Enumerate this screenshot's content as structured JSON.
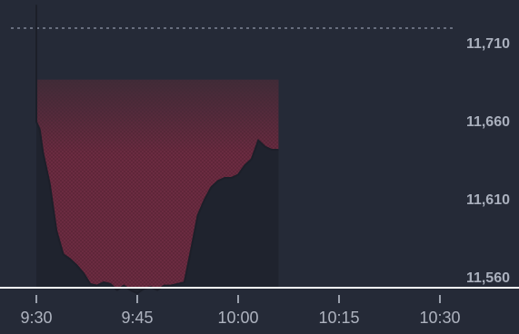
{
  "chart_data": {
    "type": "area",
    "title": "",
    "xlabel": "",
    "ylabel": "",
    "x_ticks": [
      "9:30",
      "9:45",
      "10:00",
      "10:15",
      "10:30"
    ],
    "y_ticks": [
      "11,710",
      "11,660",
      "11,610",
      "11,560"
    ],
    "xlim": [
      "9:30",
      "10:34"
    ],
    "ylim": [
      11553,
      11738
    ],
    "reference_value": 11720,
    "grid": false,
    "legend": "none",
    "series": [
      {
        "x": [
          "9:30",
          "9:30",
          "9:30.5",
          "9:31",
          "9:32",
          "9:33",
          "9:34",
          "9:35",
          "9:36",
          "9:37",
          "9:38",
          "9:39",
          "9:40",
          "9:41",
          "9:42",
          "9:43",
          "9:44",
          "9:45",
          "9:46",
          "9:47",
          "9:48",
          "9:49",
          "9:50",
          "9:51",
          "9:52",
          "9:53",
          "9:54",
          "9:55",
          "9:56",
          "9:57",
          "9:58",
          "9:59",
          "10:00",
          "10:01",
          "10:02",
          "10:03",
          "10:04",
          "10:05",
          "10:06"
        ],
        "values": [
          11735,
          11660,
          11655,
          11640,
          11620,
          11590,
          11575,
          11572,
          11568,
          11563,
          11556,
          11555,
          11557,
          11556,
          11552,
          11555,
          11552,
          11550,
          11553,
          11554,
          11552,
          11555,
          11555,
          11556,
          11557,
          11578,
          11600,
          11610,
          11618,
          11622,
          11624,
          11624,
          11626,
          11632,
          11636,
          11648,
          11644,
          11642,
          11642
        ]
      }
    ],
    "colors": {
      "background": "#252a37",
      "area_fill": "#6b2b41",
      "line": "#1c1f29",
      "baseline": "#ffffff",
      "reference_line": "#8a8fa0"
    }
  }
}
